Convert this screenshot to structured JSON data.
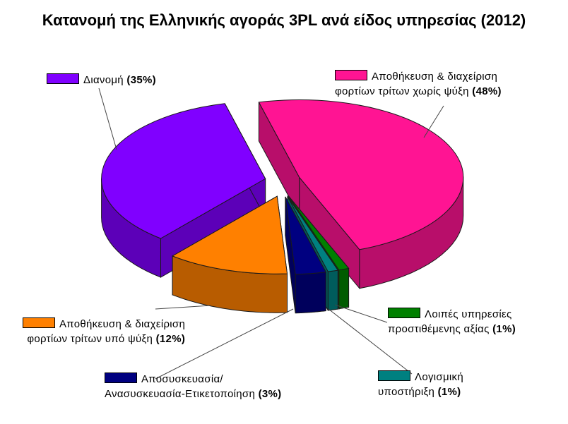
{
  "chart_data": {
    "type": "pie",
    "title": "Κατανομή της Ελληνικής αγοράς 3PL ανά είδος υπηρεσίας (2012)",
    "slices": [
      {
        "name": "Αποθήκευση & διαχείριση φορτίων τρίτων χωρίς ψύξη",
        "label_line1": "Αποθήκευση & διαχείριση",
        "label_line2": "φορτίων τρίτων χωρίς ψύξη",
        "value": 48,
        "value_label": "(48%)",
        "color": "#ff1493"
      },
      {
        "name": "Λοιπές υπηρεσίες προστιθέμενης αξίας",
        "label_line1": "Λοιπές υπηρεσίες",
        "label_line2": "προστιθέμενης αξίας",
        "value": 1,
        "value_label": "(1%)",
        "color": "#008000"
      },
      {
        "name": "Λογισμική υποστήριξη",
        "label_line1": "Λογισμική",
        "label_line2": "υποστήριξη",
        "value": 1,
        "value_label": "(1%)",
        "color": "#008080"
      },
      {
        "name": "Αποσυσκευασία/ Ανασυσκευασία-Ετικετοποίηση",
        "label_line1": "Αποσυσκευασία/",
        "label_line2": "Ανασυσκευασία-Ετικετοποίηση",
        "value": 3,
        "value_label": "(3%)",
        "color": "#000080"
      },
      {
        "name": "Αποθήκευση & διαχείριση φορτίων τρίτων υπό ψύξη",
        "label_line1": "Αποθήκευση & διαχείριση",
        "label_line2": "φορτίων τρίτων υπό ψύξη",
        "value": 12,
        "value_label": "(12%)",
        "color": "#ff8000"
      },
      {
        "name": "Διανομή",
        "label_line1": "Διανομή",
        "label_line2": "",
        "value": 35,
        "value_label": "(35%)",
        "color": "#8000ff"
      }
    ],
    "legend": "callouts around pie",
    "style": "3d exploded pie"
  }
}
